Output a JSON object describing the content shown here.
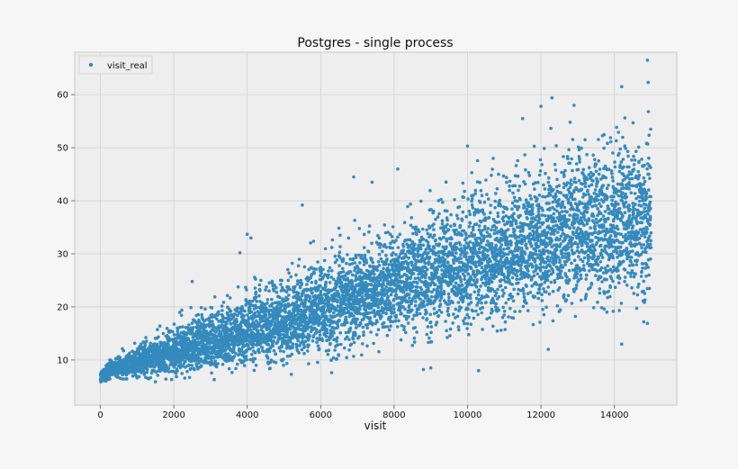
{
  "chart_data": {
    "type": "scatter",
    "title": "Postgres - single process",
    "xlabel": "visit",
    "ylabel": "",
    "xlim": [
      -700,
      15700
    ],
    "ylim": [
      1.5,
      68
    ],
    "x_ticks": [
      0,
      2000,
      4000,
      6000,
      8000,
      10000,
      12000,
      14000
    ],
    "x_tick_labels": [
      "0",
      "2000",
      "4000",
      "6000",
      "8000",
      "10000",
      "12000",
      "14000"
    ],
    "y_ticks": [
      10,
      20,
      30,
      40,
      50,
      60
    ],
    "y_tick_labels": [
      "10",
      "20",
      "30",
      "40",
      "50",
      "60"
    ],
    "grid": true,
    "legend": {
      "position": "top-left"
    },
    "colors": {
      "series": "#348abd",
      "plot_background": "#eeeeee",
      "grid": "#cfcfcf",
      "figure_background": "#f6f6f6"
    },
    "series": [
      {
        "name": "visit_real",
        "marker": "circle",
        "trend": [
          [
            0,
            6.8
          ],
          [
            300,
            8.2
          ],
          [
            1000,
            9.6
          ],
          [
            2000,
            11.5
          ],
          [
            3000,
            13.5
          ],
          [
            4000,
            15.2
          ],
          [
            5000,
            17.2
          ],
          [
            6000,
            19.5
          ],
          [
            7000,
            21.6
          ],
          [
            8000,
            23.8
          ],
          [
            9000,
            26.0
          ],
          [
            10000,
            28.0
          ],
          [
            11000,
            30.0
          ],
          [
            12000,
            32.0
          ],
          [
            13000,
            34.0
          ],
          [
            14000,
            35.5
          ],
          [
            15000,
            37.0
          ]
        ],
        "spread": [
          [
            0,
            0.5
          ],
          [
            1000,
            1.2
          ],
          [
            2000,
            2.0
          ],
          [
            4000,
            2.8
          ],
          [
            6000,
            3.8
          ],
          [
            8000,
            4.5
          ],
          [
            10000,
            5.2
          ],
          [
            12000,
            5.8
          ],
          [
            15000,
            6.5
          ]
        ],
        "outliers": [
          [
            14900,
            66.5
          ],
          [
            14920,
            62.3
          ],
          [
            14200,
            61.5
          ],
          [
            12300,
            59.4
          ],
          [
            12000,
            57.8
          ],
          [
            12900,
            58.0
          ],
          [
            10000,
            50.3
          ],
          [
            10700,
            48.0
          ],
          [
            11500,
            55.5
          ],
          [
            8100,
            46.0
          ],
          [
            7400,
            43.5
          ],
          [
            6900,
            44.5
          ],
          [
            5500,
            39.2
          ],
          [
            4000,
            33.7
          ],
          [
            4100,
            33.0
          ],
          [
            3800,
            30.2
          ],
          [
            2500,
            24.8
          ],
          [
            8800,
            8.2
          ],
          [
            9000,
            8.5
          ],
          [
            10300,
            8.0
          ],
          [
            14200,
            13.0
          ],
          [
            14800,
            17.2
          ],
          [
            14900,
            16.9
          ],
          [
            12200,
            12.0
          ],
          [
            6300,
            7.6
          ],
          [
            5200,
            7.3
          ],
          [
            3100,
            6.3
          ],
          [
            1500,
            5.9
          ]
        ],
        "n_points": 15000
      }
    ]
  }
}
